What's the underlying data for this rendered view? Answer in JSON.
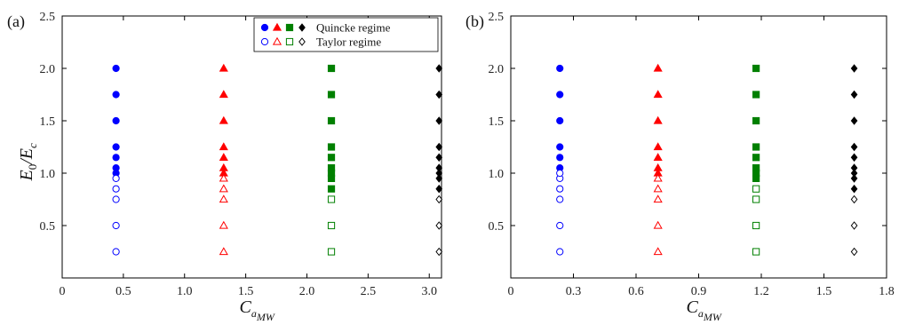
{
  "chart_data": [
    {
      "type": "scatter",
      "panel_label": "(a)",
      "xlabel": "C",
      "xlabel_sub": "a",
      "xlabel_subsub": "MW",
      "ylabel": "E",
      "ylabel_sub1": "0",
      "ylabel_mid": "/E",
      "ylabel_sub2": "c",
      "xlim": [
        0,
        3.1
      ],
      "ylim": [
        0,
        2.5
      ],
      "xticks": [
        0,
        0.5,
        1.0,
        1.5,
        2.0,
        2.5,
        3.0
      ],
      "xtick_labels": [
        "0",
        "0.5",
        "1.0",
        "1.5",
        "2.0",
        "2.5",
        "3.0"
      ],
      "yticks": [
        0,
        0.5,
        1.0,
        1.5,
        2.0,
        2.5
      ],
      "ytick_labels": [
        "",
        "0.5",
        "1.0",
        "1.5",
        "2.0",
        "2.5"
      ],
      "legend": {
        "placement": "top-right",
        "entries": [
          {
            "label": "Quincke regime",
            "filled": true
          },
          {
            "label": "Taylor regime",
            "filled": false
          }
        ]
      },
      "series": [
        {
          "x": 0.44,
          "marker": "circle",
          "color": "#0000ff",
          "quincke": [
            1.0,
            1.05,
            1.15,
            1.25,
            1.5,
            1.75,
            2.0
          ],
          "taylor": [
            0.25,
            0.5,
            0.75,
            0.85,
            0.95
          ]
        },
        {
          "x": 1.32,
          "marker": "triangle",
          "color": "#ff0000",
          "quincke": [
            1.0,
            1.05,
            1.15,
            1.25,
            1.5,
            1.75,
            2.0
          ],
          "taylor": [
            0.25,
            0.5,
            0.75,
            0.85,
            0.95
          ]
        },
        {
          "x": 2.2,
          "marker": "square",
          "color": "#008000",
          "quincke": [
            0.85,
            0.95,
            1.0,
            1.05,
            1.15,
            1.25,
            1.5,
            1.75,
            2.0
          ],
          "taylor": [
            0.25,
            0.5,
            0.75
          ]
        },
        {
          "x": 3.08,
          "marker": "diamond",
          "color": "#000000",
          "quincke": [
            0.85,
            0.95,
            1.0,
            1.05,
            1.15,
            1.25,
            1.5,
            1.75,
            2.0
          ],
          "taylor": [
            0.25,
            0.5,
            0.75
          ]
        }
      ]
    },
    {
      "type": "scatter",
      "panel_label": "(b)",
      "xlabel": "C",
      "xlabel_sub": "a",
      "xlabel_subsub": "MW",
      "xlim": [
        0,
        1.8
      ],
      "ylim": [
        0,
        2.5
      ],
      "xticks": [
        0,
        0.3,
        0.6,
        0.9,
        1.2,
        1.5,
        1.8
      ],
      "xtick_labels": [
        "0",
        "0.3",
        "0.6",
        "0.9",
        "1.2",
        "1.5",
        "1.8"
      ],
      "yticks": [
        0,
        0.5,
        1.0,
        1.5,
        2.0,
        2.5
      ],
      "ytick_labels": [
        "",
        "0.5",
        "1.0",
        "1.5",
        "2.0",
        "2.5"
      ],
      "series": [
        {
          "x": 0.235,
          "marker": "circle",
          "color": "#0000ff",
          "quincke": [
            1.05,
            1.15,
            1.25,
            1.5,
            1.75,
            2.0
          ],
          "taylor": [
            0.25,
            0.5,
            0.75,
            0.85,
            0.95,
            1.0
          ]
        },
        {
          "x": 0.705,
          "marker": "triangle",
          "color": "#ff0000",
          "quincke": [
            1.0,
            1.05,
            1.15,
            1.25,
            1.5,
            1.75,
            2.0
          ],
          "taylor": [
            0.25,
            0.5,
            0.75,
            0.85,
            0.95
          ]
        },
        {
          "x": 1.175,
          "marker": "square",
          "color": "#008000",
          "quincke": [
            0.95,
            1.0,
            1.05,
            1.15,
            1.25,
            1.5,
            1.75,
            2.0
          ],
          "taylor": [
            0.25,
            0.5,
            0.75,
            0.85
          ]
        },
        {
          "x": 1.645,
          "marker": "diamond",
          "color": "#000000",
          "quincke": [
            0.85,
            0.95,
            1.0,
            1.05,
            1.15,
            1.25,
            1.5,
            1.75,
            2.0
          ],
          "taylor": [
            0.25,
            0.5,
            0.75
          ]
        }
      ]
    }
  ]
}
